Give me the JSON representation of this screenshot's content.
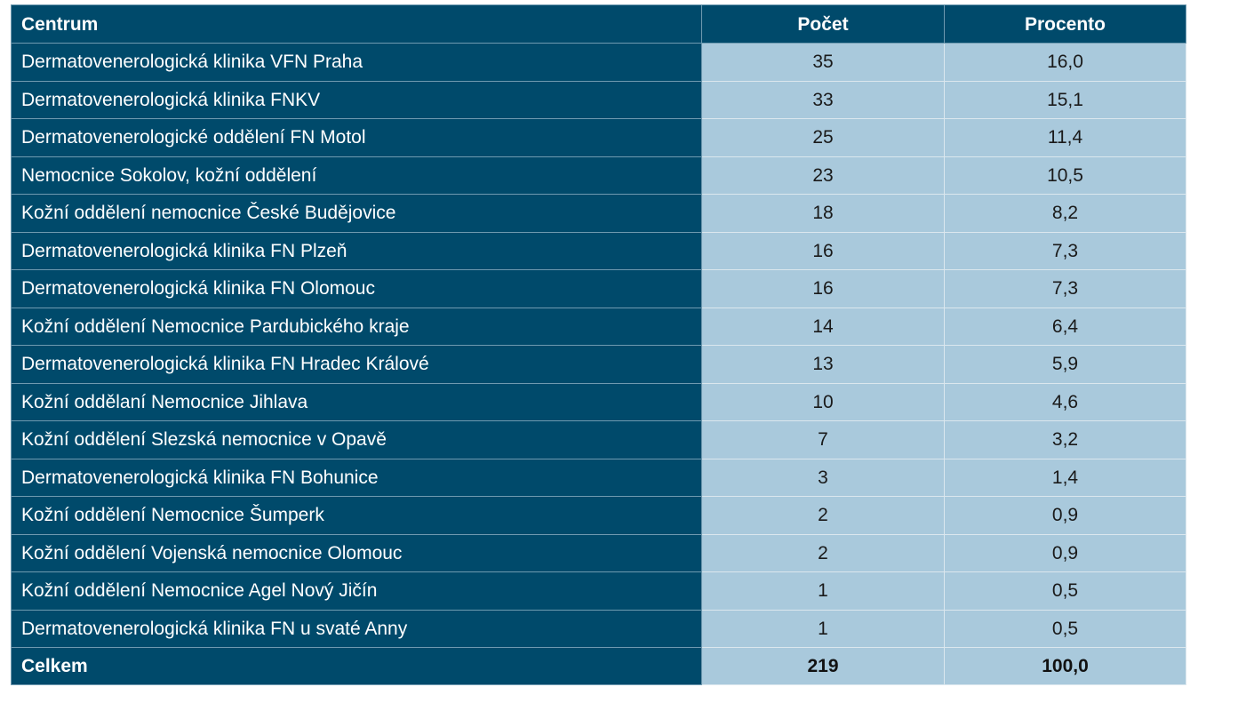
{
  "table": {
    "headers": {
      "centrum": "Centrum",
      "pocet": "Počet",
      "procento": "Procento"
    },
    "rows": [
      {
        "centrum": "Dermatovenerologická klinika VFN Praha",
        "pocet": "35",
        "procento": "16,0"
      },
      {
        "centrum": "Dermatovenerologická klinika FNKV",
        "pocet": "33",
        "procento": "15,1"
      },
      {
        "centrum": "Dermatovenerologické oddělení FN Motol",
        "pocet": "25",
        "procento": "11,4"
      },
      {
        "centrum": "Nemocnice Sokolov, kožní oddělení",
        "pocet": "23",
        "procento": "10,5"
      },
      {
        "centrum": "Kožní oddělení nemocnice České Budějovice",
        "pocet": "18",
        "procento": "8,2"
      },
      {
        "centrum": "Dermatovenerologická klinika FN Plzeň",
        "pocet": "16",
        "procento": "7,3"
      },
      {
        "centrum": "Dermatovenerologická klinika FN Olomouc",
        "pocet": "16",
        "procento": "7,3"
      },
      {
        "centrum": "Kožní oddělení Nemocnice Pardubického kraje",
        "pocet": "14",
        "procento": "6,4"
      },
      {
        "centrum": "Dermatovenerologická klinika FN Hradec Králové",
        "pocet": "13",
        "procento": "5,9"
      },
      {
        "centrum": "Kožní oddělaní Nemocnice Jihlava",
        "pocet": "10",
        "procento": "4,6"
      },
      {
        "centrum": "Kožní oddělení Slezská nemocnice v Opavě",
        "pocet": "7",
        "procento": "3,2"
      },
      {
        "centrum": "Dermatovenerologická klinika FN Bohunice",
        "pocet": "3",
        "procento": "1,4"
      },
      {
        "centrum": "Kožní oddělení Nemocnice Šumperk",
        "pocet": "2",
        "procento": "0,9"
      },
      {
        "centrum": "Kožní oddělení Vojenská nemocnice Olomouc",
        "pocet": "2",
        "procento": "0,9"
      },
      {
        "centrum": "Kožní oddělení Nemocnice Agel Nový Jičín",
        "pocet": "1",
        "procento": "0,5"
      },
      {
        "centrum": "Dermatovenerologická klinika FN u svaté Anny",
        "pocet": "1",
        "procento": "0,5"
      }
    ],
    "total": {
      "centrum": "Celkem",
      "pocet": "219",
      "procento": "100,0"
    }
  },
  "colors": {
    "header_bg": "#004a6b",
    "cell_bg": "#a9c9dc",
    "header_text": "#ffffff"
  }
}
